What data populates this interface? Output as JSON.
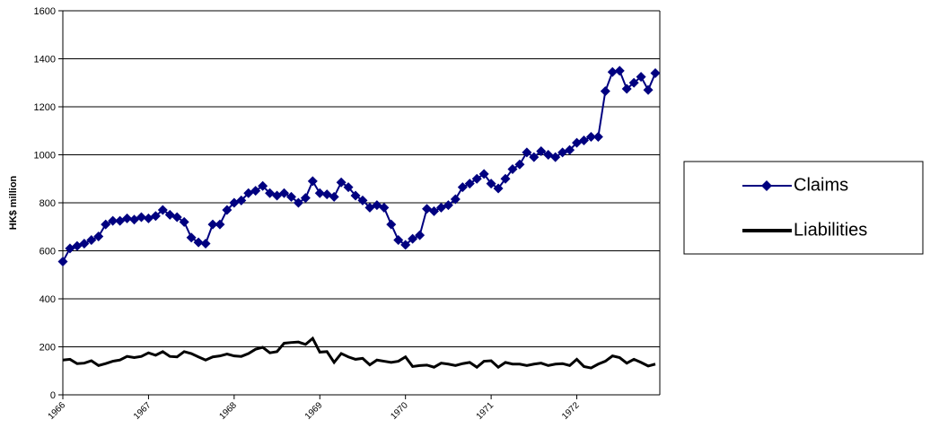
{
  "chart_data": {
    "type": "line",
    "ylabel": "HK$ million",
    "categories": [
      "1966",
      null,
      null,
      null,
      null,
      null,
      null,
      null,
      null,
      null,
      null,
      null,
      "1967",
      null,
      null,
      null,
      null,
      null,
      null,
      null,
      null,
      null,
      null,
      null,
      "1968",
      null,
      null,
      null,
      null,
      null,
      null,
      null,
      null,
      null,
      null,
      null,
      "1969",
      null,
      null,
      null,
      null,
      null,
      null,
      null,
      null,
      null,
      null,
      null,
      "1970",
      null,
      null,
      null,
      null,
      null,
      null,
      null,
      null,
      null,
      null,
      null,
      "1971",
      null,
      null,
      null,
      null,
      null,
      null,
      null,
      null,
      null,
      null,
      null,
      "1972",
      null,
      null,
      null,
      null,
      null,
      null,
      null,
      null,
      null,
      null,
      null
    ],
    "series": [
      {
        "name": "Claims",
        "color": "#000080",
        "marker": "diamond",
        "values": [
          555,
          610,
          620,
          630,
          645,
          660,
          710,
          725,
          725,
          735,
          730,
          740,
          735,
          745,
          770,
          750,
          740,
          720,
          655,
          635,
          630,
          710,
          710,
          770,
          800,
          810,
          840,
          850,
          870,
          840,
          830,
          840,
          825,
          800,
          820,
          890,
          840,
          835,
          825,
          885,
          865,
          830,
          810,
          780,
          790,
          780,
          710,
          645,
          625,
          650,
          665,
          775,
          765,
          780,
          790,
          815,
          865,
          880,
          900,
          920,
          880,
          860,
          900,
          940,
          960,
          1010,
          990,
          1015,
          1000,
          990,
          1010,
          1020,
          1050,
          1060,
          1075,
          1075,
          1265,
          1345,
          1350,
          1275,
          1300,
          1325,
          1270,
          1340
        ]
      },
      {
        "name": "Liabilities",
        "color": "#000000",
        "marker": "none",
        "values": [
          145,
          148,
          130,
          132,
          142,
          122,
          130,
          140,
          145,
          160,
          155,
          160,
          175,
          165,
          180,
          160,
          158,
          180,
          172,
          158,
          145,
          158,
          162,
          170,
          162,
          160,
          172,
          190,
          198,
          175,
          180,
          215,
          218,
          220,
          210,
          235,
          178,
          180,
          135,
          172,
          158,
          148,
          152,
          125,
          145,
          140,
          135,
          140,
          158,
          118,
          122,
          124,
          115,
          132,
          128,
          122,
          130,
          135,
          115,
          140,
          142,
          115,
          135,
          128,
          128,
          122,
          128,
          132,
          122,
          128,
          130,
          122,
          148,
          118,
          112,
          128,
          140,
          162,
          155,
          132,
          148,
          135,
          120,
          128
        ]
      }
    ],
    "ylim": [
      0,
      1600
    ],
    "yticks": [
      0,
      200,
      400,
      600,
      800,
      1000,
      1200,
      1400,
      1600
    ],
    "grid": true,
    "legend": "right"
  }
}
